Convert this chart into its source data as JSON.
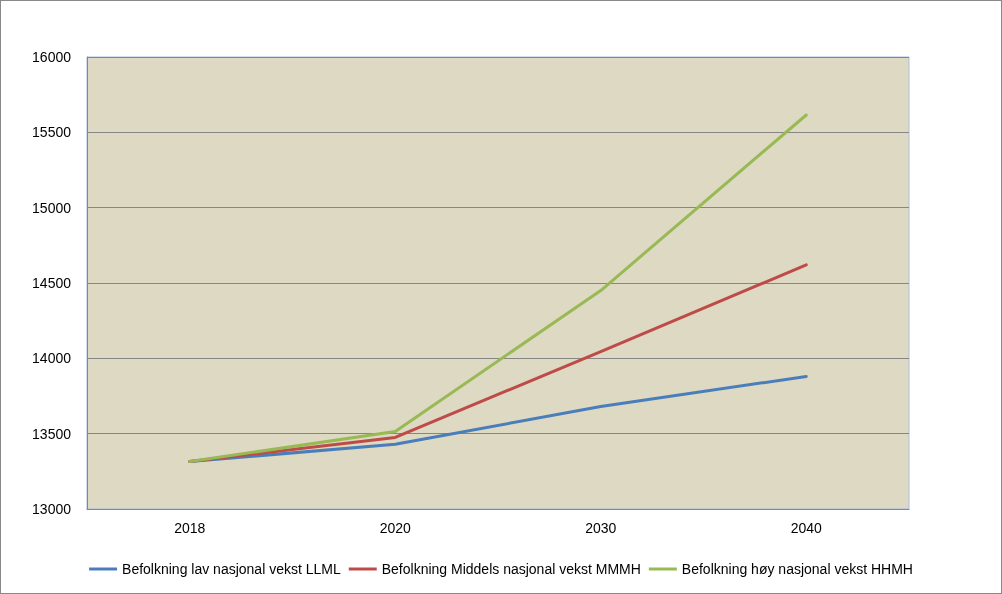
{
  "chart_data": {
    "type": "line",
    "categories": [
      "2018",
      "2020",
      "2030",
      "2040"
    ],
    "series": [
      {
        "name": "Befolkning lav nasjonal vekst LLML",
        "color": "#4a7ebb",
        "values": [
          13315,
          13430,
          13680,
          13880
        ]
      },
      {
        "name": "Befolkning Middels nasjonal vekst MMMH",
        "color": "#be4b48",
        "values": [
          13315,
          13475,
          14045,
          14620
        ]
      },
      {
        "name": "Befolkning høy nasjonal vekst HHMH",
        "color": "#98b954",
        "values": [
          13315,
          13515,
          14450,
          15615
        ]
      }
    ],
    "ylim": [
      13000,
      16000
    ],
    "yticks": [
      13000,
      13500,
      14000,
      14500,
      15000,
      15500,
      16000
    ],
    "grid": "y",
    "legend": "bottom",
    "marker": "none",
    "line_style": "solid"
  }
}
